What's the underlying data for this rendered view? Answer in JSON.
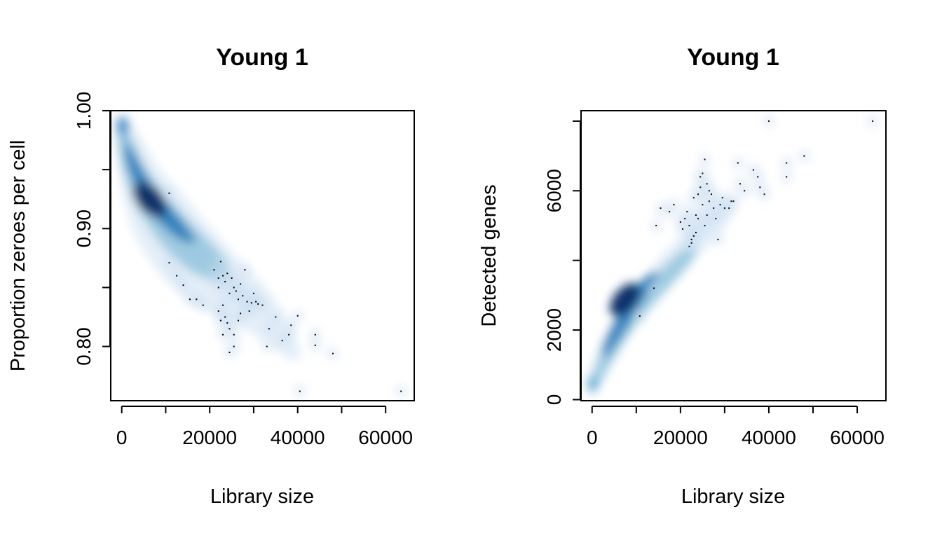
{
  "chart_data": [
    {
      "type": "scatter",
      "style": "smoothScatter",
      "title": "Young 1",
      "xlabel": "Library size",
      "ylabel": "Proportion zeroes per cell",
      "xlim": [
        -2500,
        66500
      ],
      "ylim": [
        0.754,
        1.0
      ],
      "xticks": [
        0,
        10000,
        20000,
        30000,
        40000,
        50000,
        60000
      ],
      "xtick_labels": [
        "0",
        "",
        "20000",
        "",
        "40000",
        "",
        "60000"
      ],
      "yticks": [
        0.8,
        0.85,
        0.9,
        0.95,
        1.0
      ],
      "ytick_labels": [
        "0.80",
        "",
        "0.90",
        "",
        "1.00"
      ],
      "grid": false,
      "density_colors": [
        "#f7fbff",
        "#6baed6",
        "#08306b"
      ],
      "points": [
        [
          10800,
          0.93
        ],
        [
          10800,
          0.871
        ],
        [
          12500,
          0.86
        ],
        [
          14000,
          0.852
        ],
        [
          15500,
          0.84
        ],
        [
          17000,
          0.84
        ],
        [
          18500,
          0.835
        ],
        [
          21000,
          0.865
        ],
        [
          22000,
          0.858
        ],
        [
          22500,
          0.872
        ],
        [
          22000,
          0.85
        ],
        [
          23000,
          0.86
        ],
        [
          23500,
          0.855
        ],
        [
          24000,
          0.862
        ],
        [
          24500,
          0.845
        ],
        [
          25000,
          0.858
        ],
        [
          25500,
          0.85
        ],
        [
          26000,
          0.847
        ],
        [
          26500,
          0.84
        ],
        [
          27000,
          0.853
        ],
        [
          27500,
          0.843
        ],
        [
          28000,
          0.865
        ],
        [
          28500,
          0.838
        ],
        [
          29000,
          0.83
        ],
        [
          29500,
          0.837
        ],
        [
          30000,
          0.845
        ],
        [
          30500,
          0.838
        ],
        [
          31000,
          0.836
        ],
        [
          32000,
          0.835
        ],
        [
          23000,
          0.835
        ],
        [
          23500,
          0.825
        ],
        [
          24000,
          0.82
        ],
        [
          24500,
          0.815
        ],
        [
          25500,
          0.81
        ],
        [
          26500,
          0.822
        ],
        [
          27000,
          0.828
        ],
        [
          22000,
          0.83
        ],
        [
          22500,
          0.822
        ],
        [
          23000,
          0.81
        ],
        [
          24500,
          0.795
        ],
        [
          25500,
          0.8
        ],
        [
          33000,
          0.8
        ],
        [
          33500,
          0.815
        ],
        [
          35000,
          0.825
        ],
        [
          36500,
          0.805
        ],
        [
          38000,
          0.81
        ],
        [
          38500,
          0.818
        ],
        [
          40000,
          0.826
        ],
        [
          44000,
          0.81
        ],
        [
          44000,
          0.801
        ],
        [
          48000,
          0.794
        ],
        [
          40500,
          0.762
        ],
        [
          63500,
          0.762
        ]
      ]
    },
    {
      "type": "scatter",
      "style": "smoothScatter",
      "title": "Young 1",
      "xlabel": "Library size",
      "ylabel": "Detected genes",
      "xlim": [
        -2500,
        66500
      ],
      "ylim": [
        -30,
        8300
      ],
      "xticks": [
        0,
        10000,
        20000,
        30000,
        40000,
        50000,
        60000
      ],
      "xtick_labels": [
        "0",
        "",
        "20000",
        "",
        "40000",
        "",
        "60000"
      ],
      "yticks": [
        0,
        2000,
        4000,
        6000,
        8000
      ],
      "ytick_labels": [
        "0",
        "2000",
        "",
        "6000",
        ""
      ],
      "grid": false,
      "density_colors": [
        "#f7fbff",
        "#6baed6",
        "#08306b"
      ],
      "points": [
        [
          10800,
          2400
        ],
        [
          14000,
          3200
        ],
        [
          14500,
          5000
        ],
        [
          15500,
          5500
        ],
        [
          17500,
          5400
        ],
        [
          18500,
          5600
        ],
        [
          20000,
          5100
        ],
        [
          20500,
          4900
        ],
        [
          21000,
          5200
        ],
        [
          21500,
          5400
        ],
        [
          22000,
          5000
        ],
        [
          22000,
          4400
        ],
        [
          22500,
          4600
        ],
        [
          23000,
          5800
        ],
        [
          23500,
          4800
        ],
        [
          24000,
          5200
        ],
        [
          24500,
          6100
        ],
        [
          24500,
          6400
        ],
        [
          25000,
          5600
        ],
        [
          25500,
          5000
        ],
        [
          26000,
          5300
        ],
        [
          26000,
          6200
        ],
        [
          26500,
          5700
        ],
        [
          27000,
          5900
        ],
        [
          27500,
          5500
        ],
        [
          28000,
          5200
        ],
        [
          28500,
          4600
        ],
        [
          29000,
          5600
        ],
        [
          29500,
          5800
        ],
        [
          30000,
          5500
        ],
        [
          31000,
          5500
        ],
        [
          31500,
          5700
        ],
        [
          32000,
          5700
        ],
        [
          22500,
          4500
        ],
        [
          23000,
          4700
        ],
        [
          23500,
          5300
        ],
        [
          24000,
          5900
        ],
        [
          25000,
          6500
        ],
        [
          25500,
          6900
        ],
        [
          26500,
          6000
        ],
        [
          33000,
          6800
        ],
        [
          33500,
          6200
        ],
        [
          34500,
          6000
        ],
        [
          36500,
          6600
        ],
        [
          37500,
          6400
        ],
        [
          38000,
          6100
        ],
        [
          39000,
          5900
        ],
        [
          44000,
          6800
        ],
        [
          44000,
          6400
        ],
        [
          48000,
          7000
        ],
        [
          40000,
          8000
        ],
        [
          63500,
          8000
        ]
      ]
    }
  ]
}
